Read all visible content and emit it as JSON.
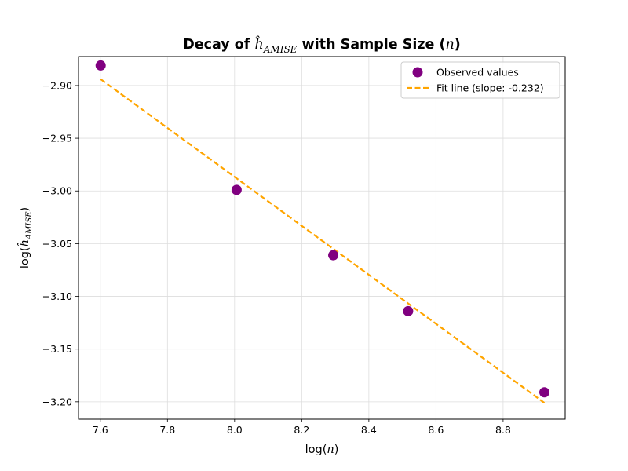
{
  "chart_data": {
    "type": "scatter",
    "title": {
      "prefix": "Decay of ",
      "h_symbol": "ĥ",
      "h_subscript": "AMISE",
      "middle": " with Sample Size (",
      "n_symbol": "n",
      "suffix": ")"
    },
    "xlabel": {
      "prefix": "log(",
      "symbol": "n",
      "suffix": ")"
    },
    "ylabel": {
      "prefix": "log(",
      "h_symbol": "ĥ",
      "h_subscript": "AMISE",
      "suffix": ")"
    },
    "xlim": [
      7.535,
      8.985
    ],
    "ylim": [
      -3.2165,
      -2.8725
    ],
    "xticks": [
      {
        "value": 7.6,
        "label": "7.6"
      },
      {
        "value": 7.8,
        "label": "7.8"
      },
      {
        "value": 8.0,
        "label": "8.0"
      },
      {
        "value": 8.2,
        "label": "8.2"
      },
      {
        "value": 8.4,
        "label": "8.4"
      },
      {
        "value": 8.6,
        "label": "8.6"
      },
      {
        "value": 8.8,
        "label": "8.8"
      }
    ],
    "yticks": [
      {
        "value": -2.9,
        "label": "−2.90"
      },
      {
        "value": -2.95,
        "label": "−2.95"
      },
      {
        "value": -3.0,
        "label": "−3.00"
      },
      {
        "value": -3.05,
        "label": "−3.05"
      },
      {
        "value": -3.1,
        "label": "−3.10"
      },
      {
        "value": -3.15,
        "label": "−3.15"
      },
      {
        "value": -3.2,
        "label": "−3.20"
      }
    ],
    "grid": true,
    "legend_position": "top-right",
    "series": [
      {
        "name": "Observed values",
        "kind": "scatter",
        "color": "#800080",
        "x": [
          7.601,
          8.006,
          8.294,
          8.517,
          8.923
        ],
        "y": [
          -2.881,
          -2.999,
          -3.061,
          -3.114,
          -3.191
        ]
      },
      {
        "name": "Fit line (slope: -0.232)",
        "kind": "line",
        "style": "dashed",
        "color": "#FFA500",
        "x": [
          7.601,
          8.923
        ],
        "y": [
          -2.894,
          -3.201
        ]
      }
    ]
  }
}
